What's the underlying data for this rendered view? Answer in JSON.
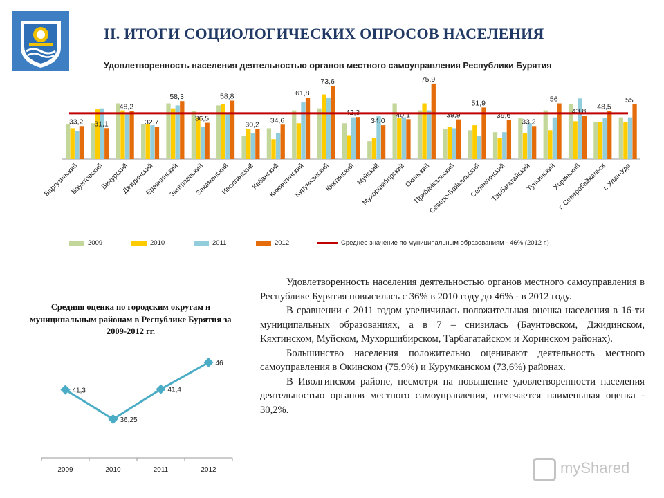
{
  "header": {
    "title": "II. ИТОГИ СОЦИОЛОГИЧЕСКИХ ОПРОСОВ НАСЕЛЕНИЯ",
    "subtitle": "Удовлетворенность населения деятельностью органов местного самоуправления  Республики Бурятия"
  },
  "legend": {
    "y2009": "2009",
    "y2010": "2010",
    "y2011": "2011",
    "y2012": "2012",
    "average": "Среднее значение по муниципальным образованиям  - 46% (2012 г.)"
  },
  "left_panel": {
    "title": "Средняя оценка по городским округам и муниципальным районам в Республике Бурятия за 2009-2012 гг."
  },
  "text": {
    "p1": "Удовлетворенность населения деятельностью органов местного самоуправления в Республике Бурятия повысилась с 36% в 2010 году до 46% - в 2012 году.",
    "p2": "В сравнении с 2011 годом увеличилась положительная оценка населения в 16-ти муниципальных образованиях, а в 7 – снизилась (Баунтовском, Джидинском, Кяхтинском, Муйском, Мухоршибирском, Тарбагатайском и Хоринском районах).",
    "p3": "Большинство населения положительно оценивают деятельность местного самоуправления в Окинском (75,9%) и Курумканском (73,6%) районах.",
    "p4": "В Иволгинском районе, несмотря на повышение удовлетворенности населения деятельностью органов местного самоуправления, отмечается наименьшая оценка - 30,2%."
  },
  "watermark": "myShared",
  "colors": {
    "y2009": "#c4d79b",
    "y2010": "#ffcc00",
    "y2011": "#92cddc",
    "y2012": "#e46c0a",
    "average": "#c00000",
    "line": "#4bacc6",
    "title": "#1f3864"
  },
  "chart_data": [
    {
      "type": "bar",
      "categories": [
        "Баргузинский",
        "Баунтовский",
        "Бичурский",
        "Джидинский",
        "Еравнинский",
        "Заиграевский",
        "Закаменский",
        "Иволгинский",
        "Кабанский",
        "Кижингинский",
        "Курумканский",
        "Кяхтинский",
        "Муйский",
        "Мухоршибирский",
        "Окинский",
        "Прибайкальский",
        "Северо-Байкальский",
        "Селенгинский",
        "Тарбагатайский",
        "Тункинский",
        "Хоринский",
        "г. Северобайкальск",
        "г. Улан-Удэ"
      ],
      "series": [
        {
          "name": "2009",
          "values": [
            35.0,
            36.0,
            56.0,
            35.0,
            56.0,
            48.0,
            54.0,
            23.0,
            31.0,
            49.0,
            51.0,
            36.0,
            18.0,
            56.0,
            49.0,
            30.0,
            29.0,
            27.0,
            41.0,
            49.0,
            55.0,
            37.0,
            42.0
          ]
        },
        {
          "name": "2010",
          "values": [
            31.0,
            50.0,
            49.0,
            35.0,
            51.0,
            42.0,
            55.0,
            30.0,
            20.0,
            36.0,
            65.0,
            24.0,
            21.0,
            41.0,
            56.0,
            32.0,
            34.0,
            21.0,
            26.0,
            29.0,
            38.0,
            37.0,
            37.0
          ]
        },
        {
          "name": "2011",
          "values": [
            28.0,
            51.0,
            46.0,
            34.0,
            54.0,
            32.0,
            47.0,
            26.0,
            26.0,
            57.0,
            62.0,
            42.0,
            43.0,
            42.0,
            49.0,
            31.0,
            23.0,
            27.0,
            36.0,
            42.0,
            61.0,
            41.0,
            42.0
          ]
        },
        {
          "name": "2012",
          "values": [
            33.2,
            31.1,
            48.2,
            32.7,
            58.3,
            36.5,
            58.8,
            30.2,
            34.6,
            61.8,
            73.6,
            42.3,
            34.0,
            40.1,
            75.9,
            39.9,
            51.9,
            39.6,
            33.2,
            56.0,
            43.8,
            48.5,
            55.0
          ]
        }
      ],
      "data_labels_2012": [
        "33,2",
        "31,1",
        "48,2",
        "32,7",
        "58,3",
        "36,5",
        "58,8",
        "30,2",
        "34,6",
        "61,8",
        "73,6",
        "42,3",
        "34,0",
        "40,1",
        "75,9",
        "39,9",
        "51,9",
        "39,6",
        "33,2",
        "56",
        "43,8",
        "48,5",
        "55"
      ],
      "average_line": {
        "name": "Среднее значение по муниципальным образованиям  - 46% (2012 г.)",
        "value": 46
      },
      "ylim": [
        0,
        80
      ],
      "grid": false,
      "legend_position": "bottom"
    },
    {
      "type": "line",
      "x": [
        "2009",
        "2010",
        "2011",
        "2012"
      ],
      "series": [
        {
          "values": [
            41.3,
            36.25,
            41.4,
            46
          ]
        }
      ],
      "data_labels": [
        "41,3",
        "36,25",
        "41,4",
        "46"
      ],
      "ylim": [
        34,
        48
      ],
      "grid": false
    }
  ]
}
